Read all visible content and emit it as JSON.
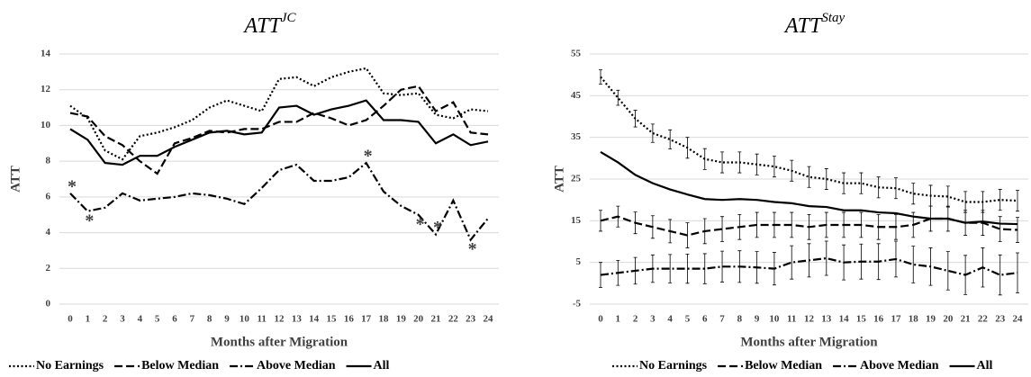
{
  "chart_data": [
    {
      "type": "line",
      "title": "ATT",
      "title_superscript": "JC",
      "y_label": "ATT",
      "x_label": "Months after Migration",
      "categories": [
        "0",
        "1",
        "2",
        "3",
        "4",
        "5",
        "6",
        "7",
        "8",
        "9",
        "10",
        "11",
        "12",
        "13",
        "14",
        "15",
        "16",
        "17",
        "18",
        "19",
        "20",
        "21",
        "22",
        "23",
        "24"
      ],
      "ylim": [
        0,
        14
      ],
      "yticks": [
        0,
        2,
        4,
        6,
        8,
        10,
        12,
        14
      ],
      "grid": true,
      "legend": "bottom",
      "annotation": "*",
      "annotated_series": 2,
      "annotated_points": [
        0,
        1,
        17,
        20,
        21,
        23
      ],
      "series": [
        {
          "name": "No Earnings",
          "color": "#000000",
          "style": "dotted",
          "values": [
            11.1,
            10.4,
            8.6,
            8.1,
            9.4,
            9.6,
            9.9,
            10.3,
            11.0,
            11.4,
            11.1,
            10.8,
            12.6,
            12.7,
            12.2,
            12.7,
            13.0,
            13.2,
            11.8,
            11.7,
            11.8,
            10.6,
            10.4,
            10.9,
            10.8
          ]
        },
        {
          "name": "Below Median",
          "color": "#000000",
          "style": "dashed",
          "values": [
            10.7,
            10.5,
            9.4,
            8.9,
            8.0,
            7.3,
            9.0,
            9.3,
            9.7,
            9.6,
            9.8,
            9.8,
            10.2,
            10.2,
            10.7,
            10.4,
            10.0,
            10.3,
            11.1,
            12.0,
            12.2,
            10.8,
            11.3,
            9.6,
            9.5
          ]
        },
        {
          "name": "Above Median",
          "color": "#000000",
          "style": "dashdot",
          "values": [
            6.2,
            5.2,
            5.4,
            6.2,
            5.8,
            5.9,
            6.0,
            6.2,
            6.1,
            5.9,
            5.6,
            6.5,
            7.5,
            7.8,
            6.9,
            6.9,
            7.1,
            7.9,
            6.3,
            5.5,
            5.0,
            3.9,
            5.8,
            3.6,
            4.8
          ]
        },
        {
          "name": "All",
          "color": "#000000",
          "style": "solid",
          "values": [
            9.8,
            9.2,
            7.9,
            7.8,
            8.3,
            8.3,
            8.8,
            9.2,
            9.6,
            9.7,
            9.5,
            9.6,
            11.0,
            11.1,
            10.6,
            10.9,
            11.1,
            11.4,
            10.3,
            10.3,
            10.2,
            9.0,
            9.5,
            8.9,
            9.1
          ]
        }
      ]
    },
    {
      "type": "line",
      "title": "ATT",
      "title_superscript": "Stay",
      "y_label": "ATT",
      "x_label": "Months after Migration",
      "categories": [
        "0",
        "1",
        "2",
        "3",
        "4",
        "5",
        "6",
        "7",
        "8",
        "9",
        "10",
        "11",
        "12",
        "13",
        "14",
        "15",
        "16",
        "17",
        "18",
        "19",
        "20",
        "21",
        "22",
        "23",
        "24"
      ],
      "ylim": [
        -5,
        55
      ],
      "yticks": [
        -5,
        5,
        15,
        25,
        35,
        45,
        55
      ],
      "grid": true,
      "legend": "bottom",
      "series": [
        {
          "name": "No Earnings",
          "color": "#000000",
          "style": "dotted",
          "values": [
            49.5,
            44.5,
            39.5,
            36,
            34.5,
            32.5,
            29.8,
            29,
            29,
            28.5,
            28,
            27,
            25.5,
            25,
            24,
            24,
            23,
            22.8,
            21.5,
            21,
            20.8,
            19.5,
            19.5,
            20,
            19.8
          ],
          "errors": [
            1.7,
            1.8,
            2,
            2.2,
            2.3,
            2.5,
            2.5,
            2.5,
            2.5,
            2.5,
            2.5,
            2.5,
            2.5,
            2.5,
            2.5,
            2.5,
            2.5,
            2.5,
            2.5,
            2.5,
            2.5,
            2.5,
            2.5,
            2.5,
            2.5
          ]
        },
        {
          "name": "Below Median",
          "color": "#000000",
          "style": "dashed",
          "values": [
            15,
            16,
            14.5,
            13.5,
            12.5,
            11.5,
            12.5,
            13,
            13.5,
            14,
            14,
            14,
            13.5,
            14,
            14,
            14,
            13.5,
            13.5,
            14,
            15.5,
            15.5,
            14.5,
            14.5,
            13,
            12.8
          ],
          "errors": [
            2.5,
            2.5,
            2.6,
            2.7,
            2.8,
            3,
            3,
            3,
            3,
            3,
            3,
            3,
            3,
            3,
            3,
            3,
            3,
            3,
            3,
            3,
            3,
            3,
            3,
            3,
            3
          ]
        },
        {
          "name": "Above Median",
          "color": "#000000",
          "style": "dashdot",
          "values": [
            2,
            2.5,
            3,
            3.5,
            3.5,
            3.5,
            3.5,
            4,
            4,
            3.8,
            3.5,
            5,
            5.5,
            6,
            5,
            5.2,
            5.2,
            5.8,
            4.5,
            4,
            3,
            2,
            3.8,
            2,
            2.5
          ],
          "errors": [
            3,
            3,
            3.2,
            3.3,
            3.4,
            3.5,
            3.6,
            3.7,
            3.8,
            3.8,
            3.9,
            4,
            4,
            4.1,
            4.2,
            4.2,
            4.3,
            4.3,
            4.4,
            4.5,
            4.6,
            4.7,
            4.7,
            4.8,
            4.8
          ]
        },
        {
          "name": "All",
          "color": "#000000",
          "style": "solid",
          "values": [
            31.5,
            29,
            26,
            24,
            22.5,
            21.3,
            20.2,
            20,
            20.2,
            20,
            19.5,
            19.2,
            18.5,
            18.3,
            17.5,
            17.5,
            17,
            16.8,
            16,
            15.5,
            15.5,
            14.5,
            14.8,
            14.3,
            14.2
          ]
        }
      ]
    }
  ]
}
